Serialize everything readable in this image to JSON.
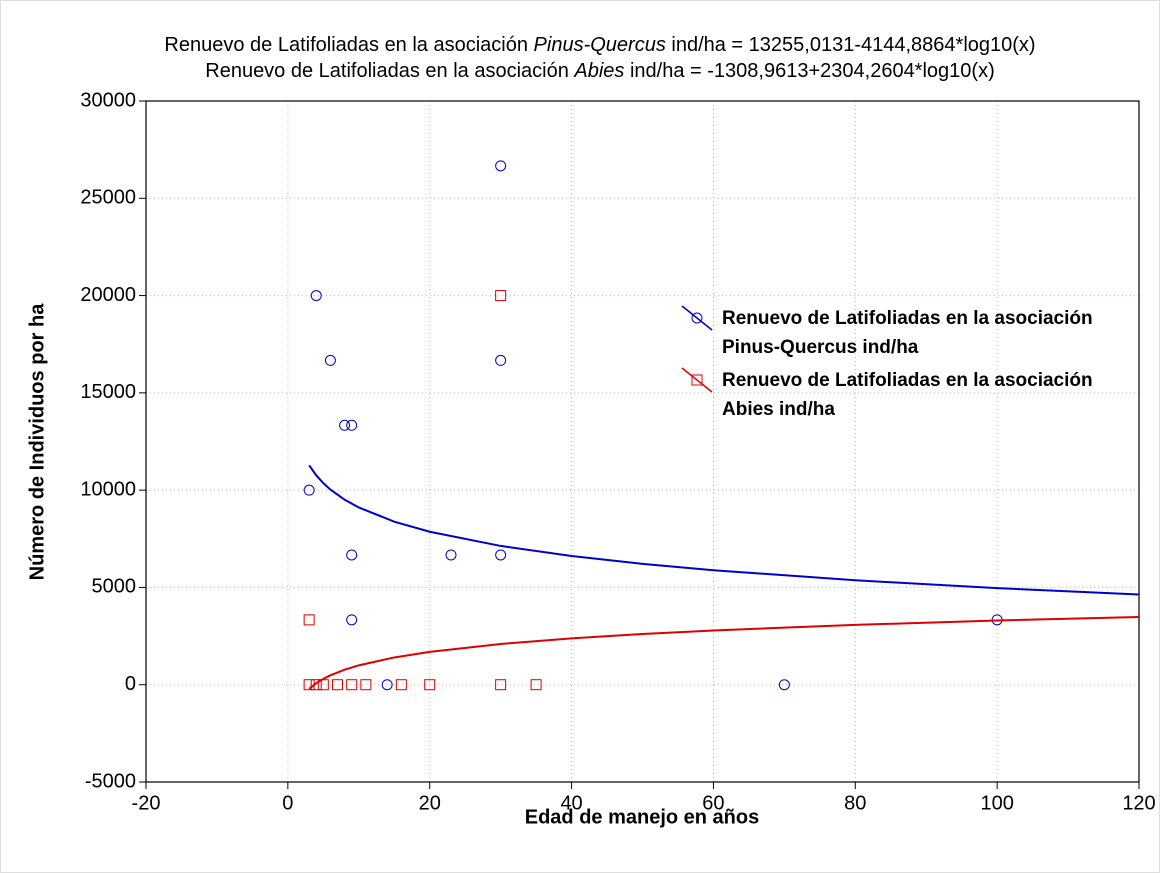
{
  "chart_data": {
    "type": "scatter",
    "title": [
      [
        "Renuevo de Latifoliadas en la asociación ",
        "Pinus-Quercus",
        " ind/ha = 13255,0131-4144,8864*log10(x)"
      ],
      [
        "Renuevo de Latifoliadas en la asociación ",
        "Abies",
        " ind/ha = -1308,9613+2304,2604*log10(x)"
      ]
    ],
    "xlabel": "Edad de manejo en años",
    "ylabel": "Número de Individuos por ha",
    "xlim": [
      -20,
      120
    ],
    "ylim": [
      -5000,
      30000
    ],
    "xticks": [
      -20,
      0,
      20,
      40,
      60,
      80,
      100,
      120
    ],
    "yticks": [
      -5000,
      0,
      5000,
      10000,
      15000,
      20000,
      25000,
      30000
    ],
    "grid": true,
    "legend": "upper right",
    "series": [
      {
        "name": "Renuevo de Latifoliadas en la asociación Pinus-Quercus ind/ha",
        "color": "#0000cc",
        "marker": "circle",
        "x": [
          4,
          6,
          8,
          9,
          3,
          9,
          9,
          23,
          30,
          30,
          30,
          14,
          70,
          100
        ],
        "values": [
          20000,
          16667,
          13333,
          13333,
          10000,
          6667,
          3333,
          6667,
          6667,
          16667,
          26667,
          0,
          0,
          3333
        ],
        "fit": {
          "x": [
            3,
            4,
            5,
            6,
            8,
            10,
            15,
            20,
            30,
            40,
            50,
            60,
            80,
            100,
            120
          ],
          "values": [
            11277,
            10760,
            10358,
            10030,
            9512,
            9110,
            8380,
            7863,
            7133,
            6615,
            6213,
            5885,
            5367,
            4965,
            4637
          ]
        }
      },
      {
        "name": "Renuevo de Latifoliadas en la asociación Abies ind/ha",
        "color": "#dd0000",
        "marker": "square",
        "x": [
          3,
          30,
          3,
          4,
          5,
          7,
          9,
          11,
          16,
          20,
          30,
          35
        ],
        "values": [
          3333,
          20000,
          0,
          0,
          0,
          0,
          0,
          0,
          0,
          0,
          0,
          0
        ],
        "fit": {
          "x": [
            3,
            4,
            5,
            6,
            8,
            10,
            15,
            20,
            30,
            40,
            50,
            60,
            80,
            100,
            120
          ],
          "values": [
            -210,
            78,
            302,
            484,
            772,
            995,
            1401,
            1689,
            2095,
            2383,
            2606,
            2788,
            3076,
            3300,
            3482
          ]
        }
      }
    ]
  }
}
